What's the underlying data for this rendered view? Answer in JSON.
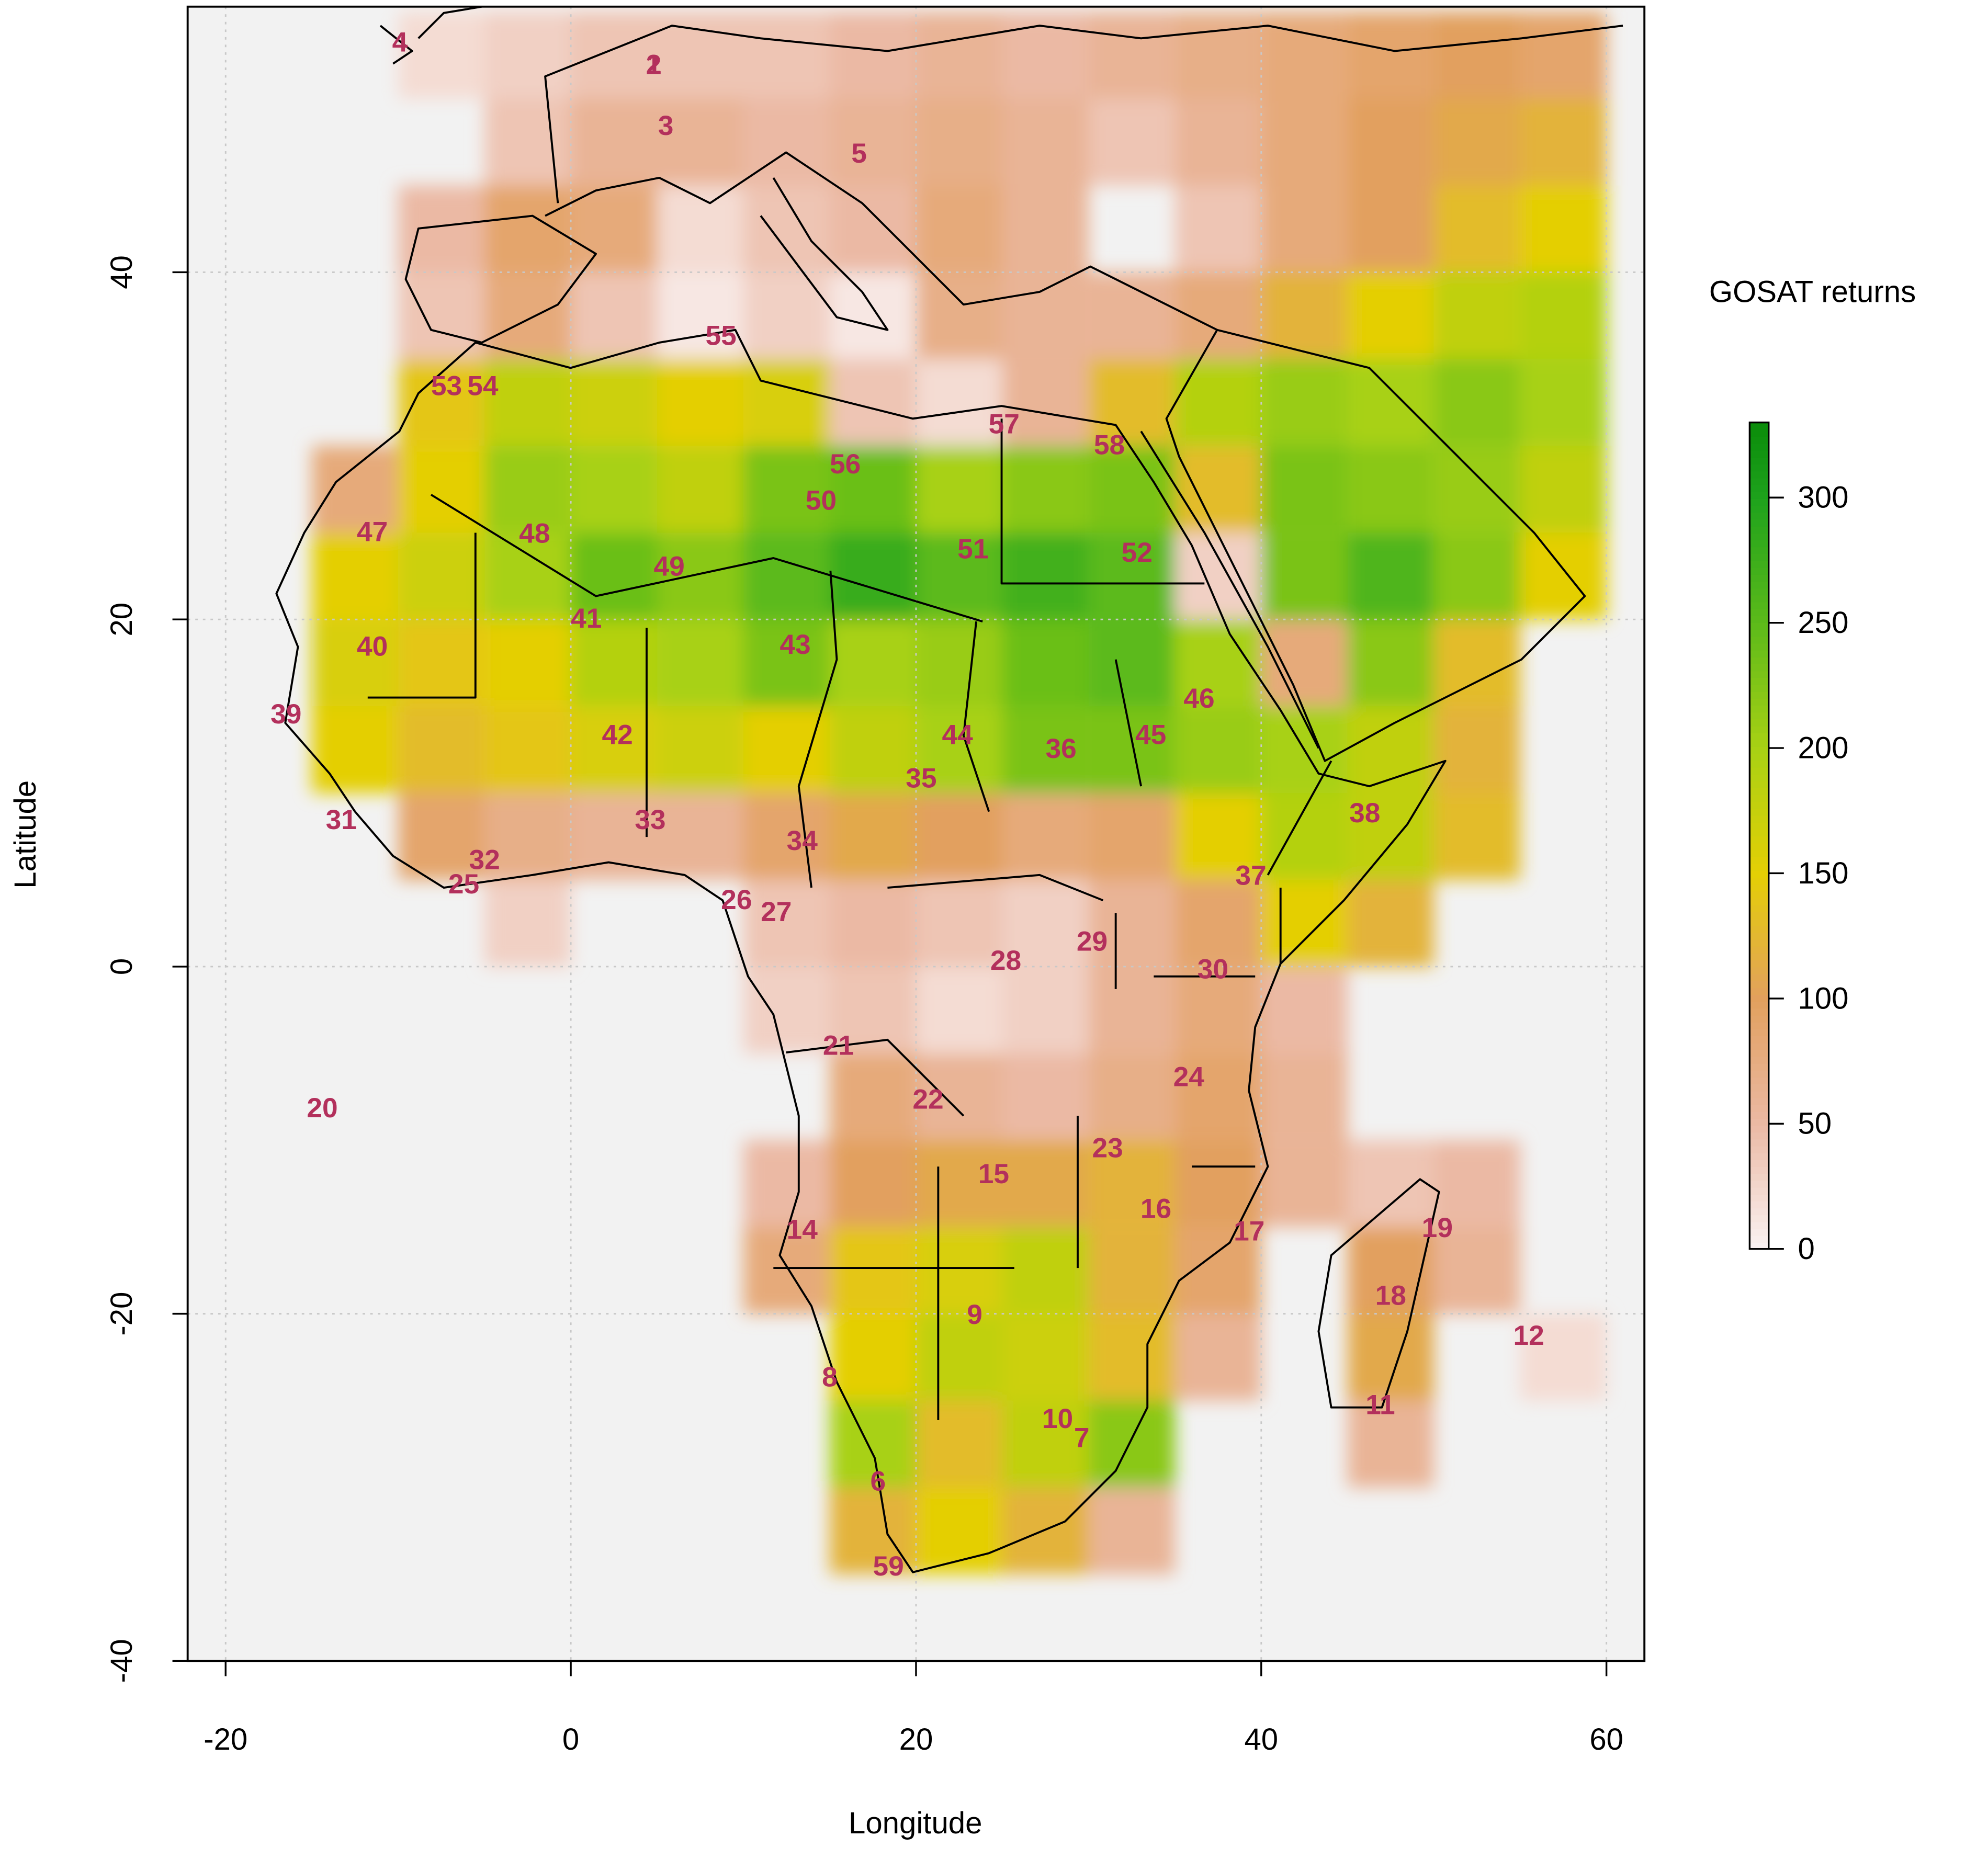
{
  "chart_data": {
    "type": "heatmap_map",
    "x_label": "Longitude",
    "y_label": "Latitude",
    "colorbar_title": "GOSAT returns",
    "xlim": [
      -22.2,
      62.2
    ],
    "ylim": [
      -40,
      55.3
    ],
    "xticks": [
      -20,
      0,
      20,
      40,
      60
    ],
    "yticks": [
      -40,
      -20,
      0,
      20,
      40
    ],
    "grid": true,
    "background": "#f2f2f2",
    "clim": [
      0,
      330
    ],
    "cticks": [
      0,
      50,
      100,
      150,
      200,
      250,
      300
    ],
    "colorscale": [
      {
        "value": 0,
        "color": "#faf3f3"
      },
      {
        "value": 50,
        "color": "#ebb9a4"
      },
      {
        "value": 100,
        "color": "#e2a05e"
      },
      {
        "value": 150,
        "color": "#e4cf05"
      },
      {
        "value": 200,
        "color": "#a8d114"
      },
      {
        "value": 250,
        "color": "#5cba1a"
      },
      {
        "value": 300,
        "color": "#1ea21c"
      },
      {
        "value": 330,
        "color": "#0a8c0a"
      }
    ],
    "heat_lons": [
      -20,
      -15,
      -10,
      -5,
      0,
      5,
      10,
      15,
      20,
      25,
      30,
      35,
      40,
      45,
      50,
      55,
      60
    ],
    "heat_lats": [
      55,
      50,
      45,
      40,
      35,
      30,
      25,
      20,
      15,
      10,
      5,
      0,
      -5,
      -10,
      -15,
      -20,
      -25,
      -30,
      -35,
      -40
    ],
    "heat_values": [
      [
        null,
        null,
        20,
        30,
        40,
        40,
        40,
        50,
        60,
        50,
        60,
        70,
        80,
        90,
        100,
        90
      ],
      [
        null,
        null,
        null,
        40,
        60,
        60,
        50,
        60,
        70,
        60,
        40,
        60,
        80,
        100,
        110,
        120
      ],
      [
        null,
        null,
        50,
        90,
        80,
        20,
        40,
        50,
        80,
        60,
        null,
        40,
        80,
        100,
        130,
        150
      ],
      [
        null,
        null,
        40,
        80,
        40,
        10,
        30,
        10,
        70,
        60,
        60,
        80,
        120,
        150,
        180,
        190
      ],
      [
        null,
        null,
        140,
        180,
        170,
        150,
        160,
        40,
        20,
        60,
        130,
        190,
        210,
        200,
        220,
        200
      ],
      [
        null,
        80,
        150,
        210,
        200,
        180,
        230,
        240,
        200,
        220,
        230,
        130,
        230,
        220,
        210,
        180
      ],
      [
        null,
        150,
        170,
        200,
        240,
        220,
        250,
        280,
        250,
        270,
        250,
        30,
        230,
        260,
        220,
        150
      ],
      [
        null,
        160,
        140,
        150,
        190,
        200,
        230,
        200,
        210,
        240,
        250,
        200,
        80,
        220,
        130,
        null
      ],
      [
        null,
        150,
        130,
        140,
        160,
        170,
        150,
        180,
        200,
        230,
        230,
        210,
        200,
        180,
        120,
        null
      ],
      [
        null,
        null,
        90,
        70,
        60,
        60,
        90,
        110,
        100,
        80,
        90,
        150,
        190,
        180,
        130,
        null
      ],
      [
        null,
        null,
        null,
        30,
        null,
        null,
        40,
        50,
        40,
        30,
        60,
        90,
        150,
        120,
        null,
        null
      ],
      [
        null,
        null,
        null,
        null,
        null,
        null,
        30,
        40,
        20,
        30,
        60,
        80,
        50,
        null,
        null,
        null
      ],
      [
        null,
        null,
        null,
        null,
        null,
        null,
        null,
        80,
        60,
        50,
        70,
        90,
        60,
        null,
        null,
        null
      ],
      [
        null,
        null,
        null,
        null,
        null,
        null,
        50,
        100,
        110,
        110,
        120,
        100,
        60,
        40,
        50,
        null
      ],
      [
        null,
        null,
        null,
        null,
        null,
        null,
        80,
        140,
        160,
        180,
        120,
        90,
        null,
        100,
        60,
        null
      ],
      [
        null,
        null,
        null,
        null,
        null,
        null,
        null,
        150,
        180,
        170,
        130,
        60,
        null,
        110,
        null,
        20
      ],
      [
        null,
        null,
        null,
        null,
        null,
        null,
        null,
        200,
        130,
        180,
        220,
        null,
        null,
        60,
        null,
        null
      ],
      [
        null,
        null,
        null,
        null,
        null,
        null,
        null,
        120,
        150,
        120,
        60,
        null,
        null,
        null,
        null,
        null
      ],
      [
        null,
        null,
        null,
        null,
        null,
        null,
        null,
        null,
        null,
        null,
        null,
        null,
        null,
        null,
        null,
        null
      ]
    ],
    "sites": [
      {
        "label": "1",
        "lon": 4.8,
        "lat": 52.0
      },
      {
        "label": "2",
        "lon": 4.8,
        "lat": 52.0
      },
      {
        "label": "3",
        "lon": 5.5,
        "lat": 48.5
      },
      {
        "label": "4",
        "lon": -9.9,
        "lat": 53.3
      },
      {
        "label": "5",
        "lon": 16.7,
        "lat": 46.9
      },
      {
        "label": "6",
        "lon": 17.8,
        "lat": -29.6
      },
      {
        "label": "7",
        "lon": 29.6,
        "lat": -27.1
      },
      {
        "label": "8",
        "lon": 15.0,
        "lat": -23.6
      },
      {
        "label": "9",
        "lon": 23.4,
        "lat": -20.0
      },
      {
        "label": "10",
        "lon": 28.2,
        "lat": -26.0
      },
      {
        "label": "11",
        "lon": 46.9,
        "lat": -25.2
      },
      {
        "label": "12",
        "lon": 55.5,
        "lat": -21.2
      },
      {
        "label": "14",
        "lon": 13.4,
        "lat": -15.1
      },
      {
        "label": "15",
        "lon": 24.5,
        "lat": -11.9
      },
      {
        "label": "16",
        "lon": 33.9,
        "lat": -13.9
      },
      {
        "label": "17",
        "lon": 39.3,
        "lat": -15.2
      },
      {
        "label": "18",
        "lon": 47.5,
        "lat": -18.9
      },
      {
        "label": "19",
        "lon": 50.2,
        "lat": -15.0
      },
      {
        "label": "20",
        "lon": -14.4,
        "lat": -8.1
      },
      {
        "label": "21",
        "lon": 15.5,
        "lat": -4.5
      },
      {
        "label": "22",
        "lon": 20.7,
        "lat": -7.6
      },
      {
        "label": "23",
        "lon": 31.1,
        "lat": -10.4
      },
      {
        "label": "24",
        "lon": 35.8,
        "lat": -6.3
      },
      {
        "label": "25",
        "lon": -6.2,
        "lat": 4.8
      },
      {
        "label": "26",
        "lon": 9.6,
        "lat": 3.9
      },
      {
        "label": "27",
        "lon": 11.9,
        "lat": 3.2
      },
      {
        "label": "28",
        "lon": 25.2,
        "lat": 0.4
      },
      {
        "label": "29",
        "lon": 30.2,
        "lat": 1.5
      },
      {
        "label": "30",
        "lon": 37.2,
        "lat": -0.1
      },
      {
        "label": "31",
        "lon": -13.3,
        "lat": 8.5
      },
      {
        "label": "32",
        "lon": -5.0,
        "lat": 6.2
      },
      {
        "label": "33",
        "lon": 4.6,
        "lat": 8.5
      },
      {
        "label": "34",
        "lon": 13.4,
        "lat": 7.3
      },
      {
        "label": "35",
        "lon": 20.3,
        "lat": 10.9
      },
      {
        "label": "36",
        "lon": 28.4,
        "lat": 12.6
      },
      {
        "label": "37",
        "lon": 39.4,
        "lat": 5.3
      },
      {
        "label": "38",
        "lon": 46.0,
        "lat": 8.9
      },
      {
        "label": "39",
        "lon": -16.5,
        "lat": 14.6
      },
      {
        "label": "40",
        "lon": -11.5,
        "lat": 18.5
      },
      {
        "label": "41",
        "lon": 0.9,
        "lat": 20.1
      },
      {
        "label": "42",
        "lon": 2.7,
        "lat": 13.4
      },
      {
        "label": "43",
        "lon": 13.0,
        "lat": 18.6
      },
      {
        "label": "44",
        "lon": 22.4,
        "lat": 13.4
      },
      {
        "label": "45",
        "lon": 33.6,
        "lat": 13.4
      },
      {
        "label": "46",
        "lon": 36.4,
        "lat": 15.5
      },
      {
        "label": "47",
        "lon": -11.5,
        "lat": 25.1
      },
      {
        "label": "48",
        "lon": -2.1,
        "lat": 25.0
      },
      {
        "label": "49",
        "lon": 5.7,
        "lat": 23.1
      },
      {
        "label": "50",
        "lon": 14.5,
        "lat": 26.9
      },
      {
        "label": "51",
        "lon": 23.3,
        "lat": 24.1
      },
      {
        "label": "52",
        "lon": 32.8,
        "lat": 23.9
      },
      {
        "label": "53",
        "lon": -7.2,
        "lat": 33.5
      },
      {
        "label": "54",
        "lon": -5.1,
        "lat": 33.5
      },
      {
        "label": "55",
        "lon": 8.7,
        "lat": 36.4
      },
      {
        "label": "56",
        "lon": 15.9,
        "lat": 29.0
      },
      {
        "label": "57",
        "lon": 25.1,
        "lat": 31.3
      },
      {
        "label": "58",
        "lon": 31.2,
        "lat": 30.1
      },
      {
        "label": "59",
        "lon": 18.4,
        "lat": -34.5
      }
    ]
  }
}
